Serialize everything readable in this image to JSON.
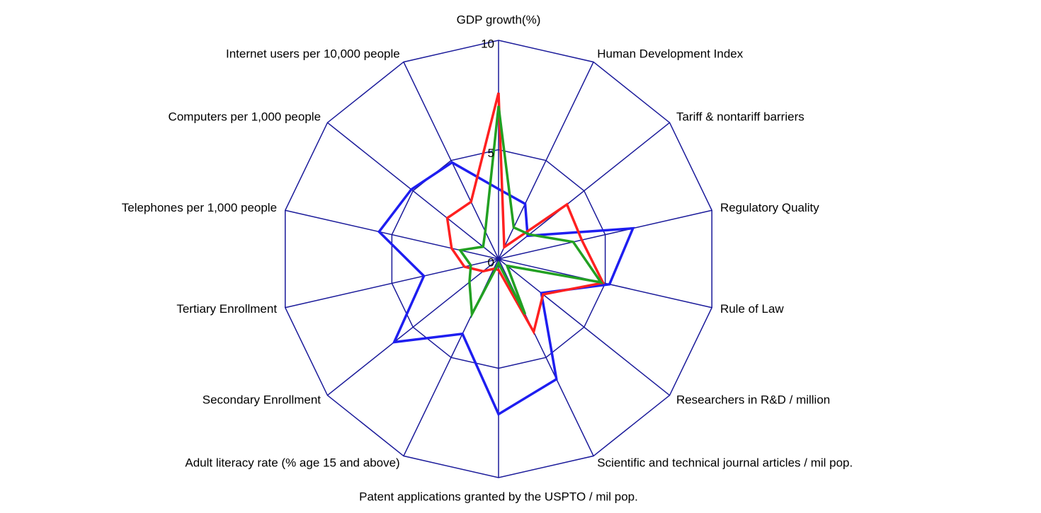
{
  "chart_data": {
    "type": "radar",
    "categories": [
      "GDP growth(%)",
      "Human Development Index",
      "Tariff & nontariff barriers",
      "Regulatory Quality",
      "Rule of Law",
      "Researchers in R&D / million",
      "Scientific and technical journal articles / mil pop.",
      "Patent applications granted by the USPTO / mil pop.",
      "Adult literacy rate (% age 15 and above)",
      "Secondary Enrollment",
      "Tertiary  Enrollment",
      "Telephones per 1,000 people",
      "Computers per 1,000 people",
      "Internet users per 10,000 people"
    ],
    "ylim": [
      0,
      10
    ],
    "yticks": [
      0,
      5,
      10
    ],
    "grid": true,
    "grid_color": "#1a1a9a",
    "series": [
      {
        "color": "#1e1ef0",
        "values": [
          3.2,
          2.8,
          1.7,
          6.3,
          5.2,
          2.5,
          6.1,
          7.1,
          3.8,
          6.1,
          3.5,
          5.6,
          5.1,
          4.9
        ]
      },
      {
        "color": "#ff2020",
        "values": [
          7.6,
          0.6,
          4.0,
          3.9,
          4.9,
          2.6,
          3.7,
          0.5,
          0.5,
          0.9,
          1.6,
          2.2,
          3.0,
          2.9
        ]
      },
      {
        "color": "#22a022",
        "values": [
          7.0,
          1.6,
          1.8,
          3.5,
          4.8,
          0.5,
          2.8,
          0.2,
          2.8,
          1.7,
          1.3,
          1.8,
          0.9,
          1.4
        ]
      }
    ]
  }
}
